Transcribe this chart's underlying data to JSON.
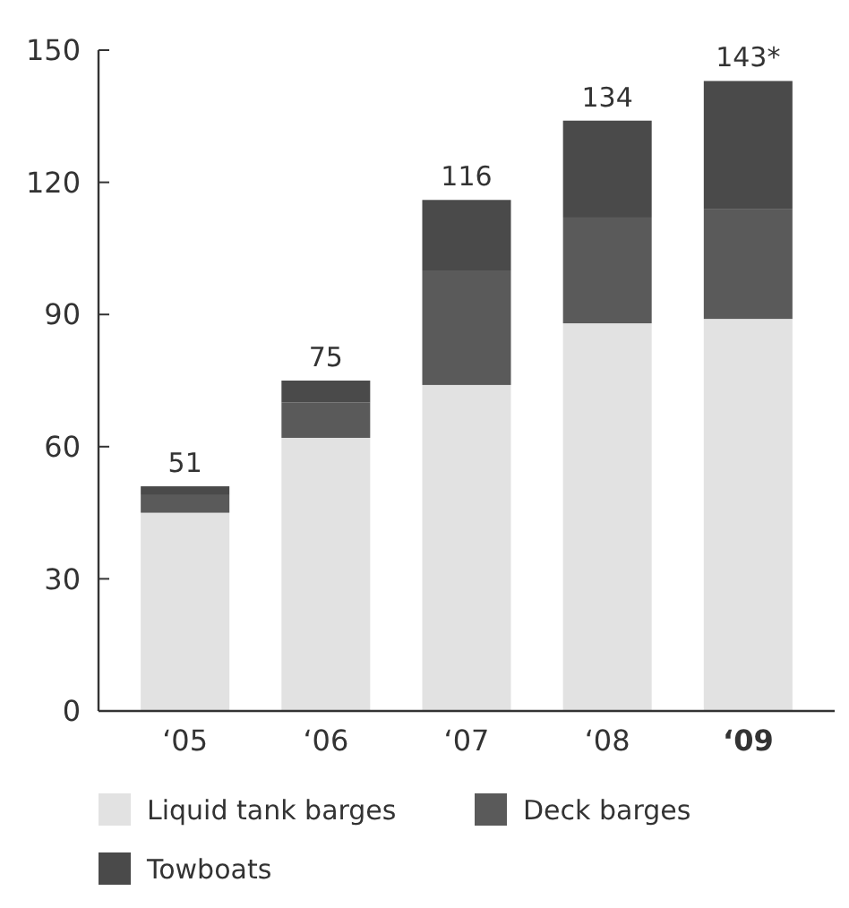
{
  "chart_data": {
    "type": "bar",
    "stacked": true,
    "categories": [
      "‘05",
      "‘06",
      "‘07",
      "‘08",
      "‘09"
    ],
    "series": [
      {
        "name": "Liquid tank barges",
        "color": "#e2e2e2",
        "values": [
          45,
          62,
          74,
          88,
          89
        ]
      },
      {
        "name": "Deck barges",
        "color": "#5a5a5a",
        "values": [
          4,
          8,
          26,
          24,
          25
        ]
      },
      {
        "name": "Towboats",
        "color": "#4a4a4a",
        "values": [
          2,
          5,
          16,
          22,
          29
        ]
      }
    ],
    "totals": [
      "51",
      "75",
      "116",
      "134",
      "143*"
    ],
    "ylim": [
      0,
      150
    ],
    "yticks": [
      0,
      30,
      60,
      90,
      120,
      150
    ],
    "grid": false,
    "legend": "bottom"
  }
}
